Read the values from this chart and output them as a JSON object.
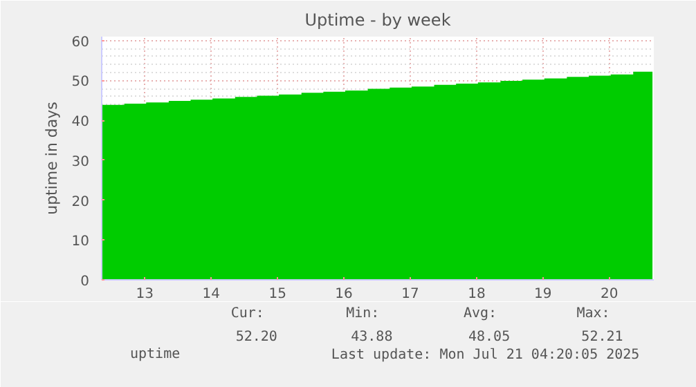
{
  "chart_data": {
    "type": "area",
    "title": "Uptime - by week",
    "ylabel": "uptime in days",
    "x": [
      12.86,
      13.19,
      13.52,
      13.86,
      14.19,
      14.52,
      14.86,
      15.19,
      15.52,
      15.86,
      16.19,
      16.52,
      16.86,
      17.19,
      17.52,
      17.86,
      18.19,
      18.52,
      18.86,
      19.19,
      19.52,
      19.86,
      20.19,
      20.52,
      20.86,
      21.15
    ],
    "series": [
      {
        "name": "uptime",
        "color": "#00cc00",
        "values": [
          43.9,
          44.2,
          44.5,
          44.9,
          45.2,
          45.5,
          45.9,
          46.2,
          46.5,
          46.9,
          47.2,
          47.5,
          47.9,
          48.2,
          48.5,
          48.9,
          49.2,
          49.5,
          49.9,
          50.2,
          50.5,
          50.9,
          51.2,
          51.5,
          52.2,
          52.2
        ]
      }
    ],
    "xlim": [
      12.85,
      21.17
    ],
    "xticks": [
      {
        "value": 13.5,
        "label": "13"
      },
      {
        "value": 14.5,
        "label": "14"
      },
      {
        "value": 15.5,
        "label": "15"
      },
      {
        "value": 16.5,
        "label": "16"
      },
      {
        "value": 17.5,
        "label": "17"
      },
      {
        "value": 18.5,
        "label": "18"
      },
      {
        "value": 19.5,
        "label": "19"
      },
      {
        "value": 20.5,
        "label": "20"
      }
    ],
    "ylim": [
      0,
      61
    ],
    "yticks": [
      0,
      10,
      20,
      30,
      40,
      50,
      60
    ],
    "grid": true,
    "legend": "bottom left",
    "annotations": [
      "Cur:",
      "Min:",
      "Avg:",
      "Max:",
      "52.20",
      "43.88",
      "48.05",
      "52.21",
      "Last update: Mon Jul 21 04:20:05 2025"
    ]
  }
}
